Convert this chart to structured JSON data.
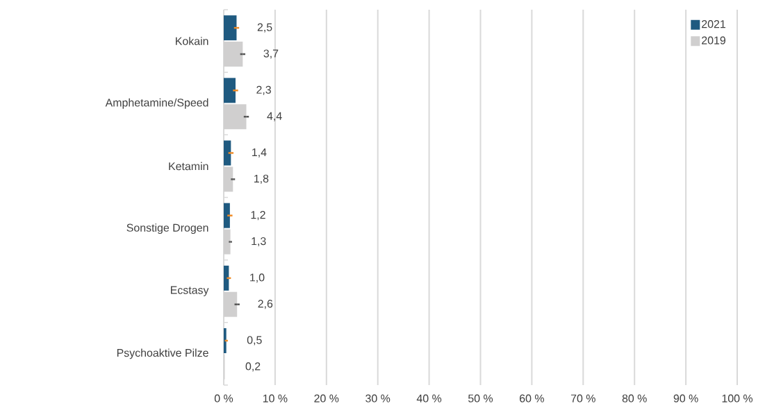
{
  "chart_data": {
    "type": "bar",
    "orientation": "horizontal",
    "categories": [
      "Kokain",
      "Amphetamine/Speed",
      "Ketamin",
      "Sonstige Drogen",
      "Ecstasy",
      "Psychoaktive Pilze"
    ],
    "series": [
      {
        "name": "2021",
        "color": "#1f5a80",
        "values": [
          2.5,
          2.3,
          1.4,
          1.2,
          1.0,
          0.5
        ],
        "errors": [
          0.5,
          0.5,
          0.5,
          0.5,
          0.4,
          0.3
        ],
        "value_labels": [
          "2,5",
          "2,3",
          "1,4",
          "1,2",
          "1,0",
          "0,5"
        ]
      },
      {
        "name": "2019",
        "color": "#d0cfcf",
        "values": [
          3.7,
          4.4,
          1.8,
          1.3,
          2.6,
          0.2
        ],
        "errors": [
          0.5,
          0.5,
          0.4,
          0.3,
          0.5,
          null
        ],
        "value_labels": [
          "3,7",
          "4,4",
          "1,8",
          "1,3",
          "2,6",
          "0,2"
        ]
      }
    ],
    "xlim": [
      0,
      100
    ],
    "xticks": [
      {
        "value": 0,
        "label": "0 %"
      },
      {
        "value": 10,
        "label": "10 %"
      },
      {
        "value": 20,
        "label": "20 %"
      },
      {
        "value": 30,
        "label": "30 %"
      },
      {
        "value": 40,
        "label": "40 %"
      },
      {
        "value": 50,
        "label": "50 %"
      },
      {
        "value": 60,
        "label": "60 %"
      },
      {
        "value": 70,
        "label": "70 %"
      },
      {
        "value": 80,
        "label": "80 %"
      },
      {
        "value": 90,
        "label": "90 %"
      },
      {
        "value": 100,
        "label": "100 %"
      }
    ],
    "grid": "x",
    "legend": "top right"
  }
}
